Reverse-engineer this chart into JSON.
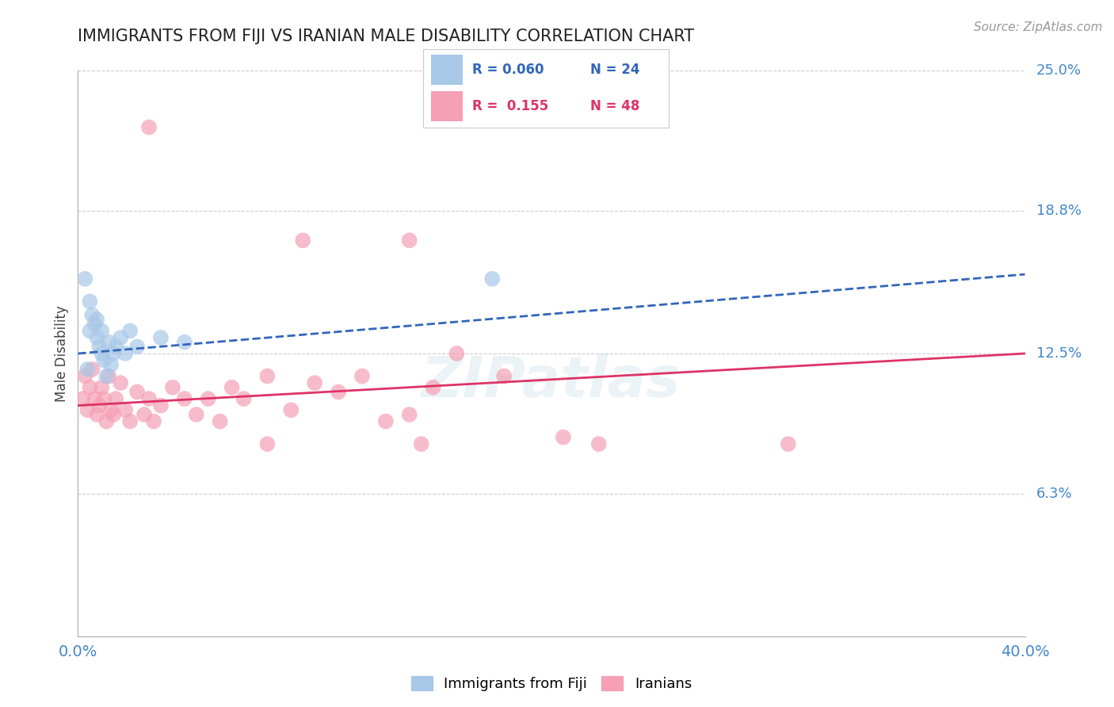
{
  "title": "IMMIGRANTS FROM FIJI VS IRANIAN MALE DISABILITY CORRELATION CHART",
  "source_text": "Source: ZipAtlas.com",
  "ylabel": "Male Disability",
  "x_min": 0.0,
  "x_max": 40.0,
  "y_min": 0.0,
  "y_max": 25.0,
  "y_ticks": [
    6.3,
    12.5,
    18.8,
    25.0
  ],
  "x_ticks": [
    0.0,
    40.0
  ],
  "legend_r_fiji": "0.060",
  "legend_n_fiji": "24",
  "legend_r_iranians": "0.155",
  "legend_n_iranians": "48",
  "fiji_color": "#a8c8e8",
  "iranian_color": "#f5a0b5",
  "fiji_line_color": "#3366bb",
  "iranian_line_color": "#dd3366",
  "background_color": "#ffffff",
  "grid_color": "#cccccc",
  "fiji_points": [
    [
      0.3,
      15.8
    ],
    [
      0.5,
      14.8
    ],
    [
      0.5,
      13.5
    ],
    [
      0.7,
      13.8
    ],
    [
      0.8,
      13.2
    ],
    [
      0.9,
      12.8
    ],
    [
      1.0,
      12.5
    ],
    [
      1.1,
      12.2
    ],
    [
      1.3,
      13.0
    ],
    [
      1.4,
      12.0
    ],
    [
      1.5,
      12.5
    ],
    [
      1.6,
      12.8
    ],
    [
      1.8,
      13.2
    ],
    [
      2.0,
      12.5
    ],
    [
      2.2,
      13.5
    ],
    [
      2.5,
      12.8
    ],
    [
      3.5,
      13.2
    ],
    [
      4.5,
      13.0
    ],
    [
      0.6,
      14.2
    ],
    [
      0.8,
      14.0
    ],
    [
      1.0,
      13.5
    ],
    [
      1.2,
      11.5
    ],
    [
      17.5,
      15.8
    ],
    [
      0.4,
      11.8
    ]
  ],
  "iranian_points": [
    [
      0.2,
      10.5
    ],
    [
      0.3,
      11.5
    ],
    [
      0.4,
      10.0
    ],
    [
      0.5,
      11.0
    ],
    [
      0.6,
      11.8
    ],
    [
      0.7,
      10.5
    ],
    [
      0.8,
      9.8
    ],
    [
      0.9,
      10.2
    ],
    [
      1.0,
      11.0
    ],
    [
      1.1,
      10.5
    ],
    [
      1.2,
      9.5
    ],
    [
      1.3,
      11.5
    ],
    [
      1.4,
      10.0
    ],
    [
      1.5,
      9.8
    ],
    [
      1.6,
      10.5
    ],
    [
      1.8,
      11.2
    ],
    [
      2.0,
      10.0
    ],
    [
      2.2,
      9.5
    ],
    [
      2.5,
      10.8
    ],
    [
      2.8,
      9.8
    ],
    [
      3.0,
      10.5
    ],
    [
      3.2,
      9.5
    ],
    [
      3.5,
      10.2
    ],
    [
      4.0,
      11.0
    ],
    [
      4.5,
      10.5
    ],
    [
      5.0,
      9.8
    ],
    [
      5.5,
      10.5
    ],
    [
      6.0,
      9.5
    ],
    [
      6.5,
      11.0
    ],
    [
      7.0,
      10.5
    ],
    [
      8.0,
      11.5
    ],
    [
      9.0,
      10.0
    ],
    [
      10.0,
      11.2
    ],
    [
      11.0,
      10.8
    ],
    [
      12.0,
      11.5
    ],
    [
      13.0,
      9.5
    ],
    [
      14.0,
      9.8
    ],
    [
      15.0,
      11.0
    ],
    [
      16.0,
      12.5
    ],
    [
      18.0,
      11.5
    ],
    [
      3.0,
      22.5
    ],
    [
      9.5,
      17.5
    ],
    [
      14.0,
      17.5
    ],
    [
      22.0,
      8.5
    ],
    [
      30.0,
      8.5
    ],
    [
      8.0,
      8.5
    ],
    [
      14.5,
      8.5
    ],
    [
      20.5,
      8.8
    ]
  ]
}
